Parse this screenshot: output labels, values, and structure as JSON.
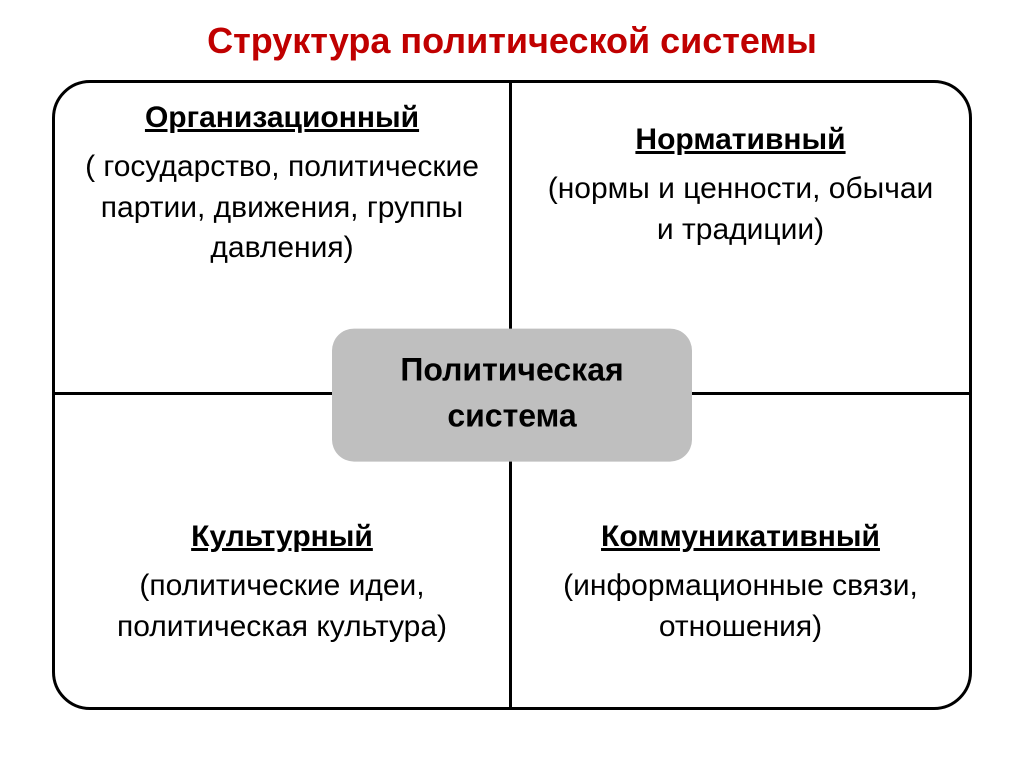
{
  "title": {
    "text": "Структура политической системы",
    "color": "#c00000",
    "fontsize": 36
  },
  "diagram": {
    "border_color": "#000000",
    "background": "#ffffff",
    "cell_heading_fontsize": 30,
    "cell_desc_fontsize": 30,
    "cells": {
      "tl": {
        "heading": "Организационный",
        "desc": "( государство, политические партии, движения, группы давления)"
      },
      "tr": {
        "heading": "Нормативный",
        "desc": "(нормы и ценности, обычаи и традиции)"
      },
      "bl": {
        "heading": "Культурный",
        "desc": "(политические идеи, политическая культура)"
      },
      "br": {
        "heading": "Коммуникативный",
        "desc": "(информационные связи, отношения)"
      }
    },
    "center": {
      "line1": "Политическая",
      "line2": "система",
      "background": "#bfbfbf",
      "text_color": "#000000",
      "fontsize": 32
    }
  }
}
